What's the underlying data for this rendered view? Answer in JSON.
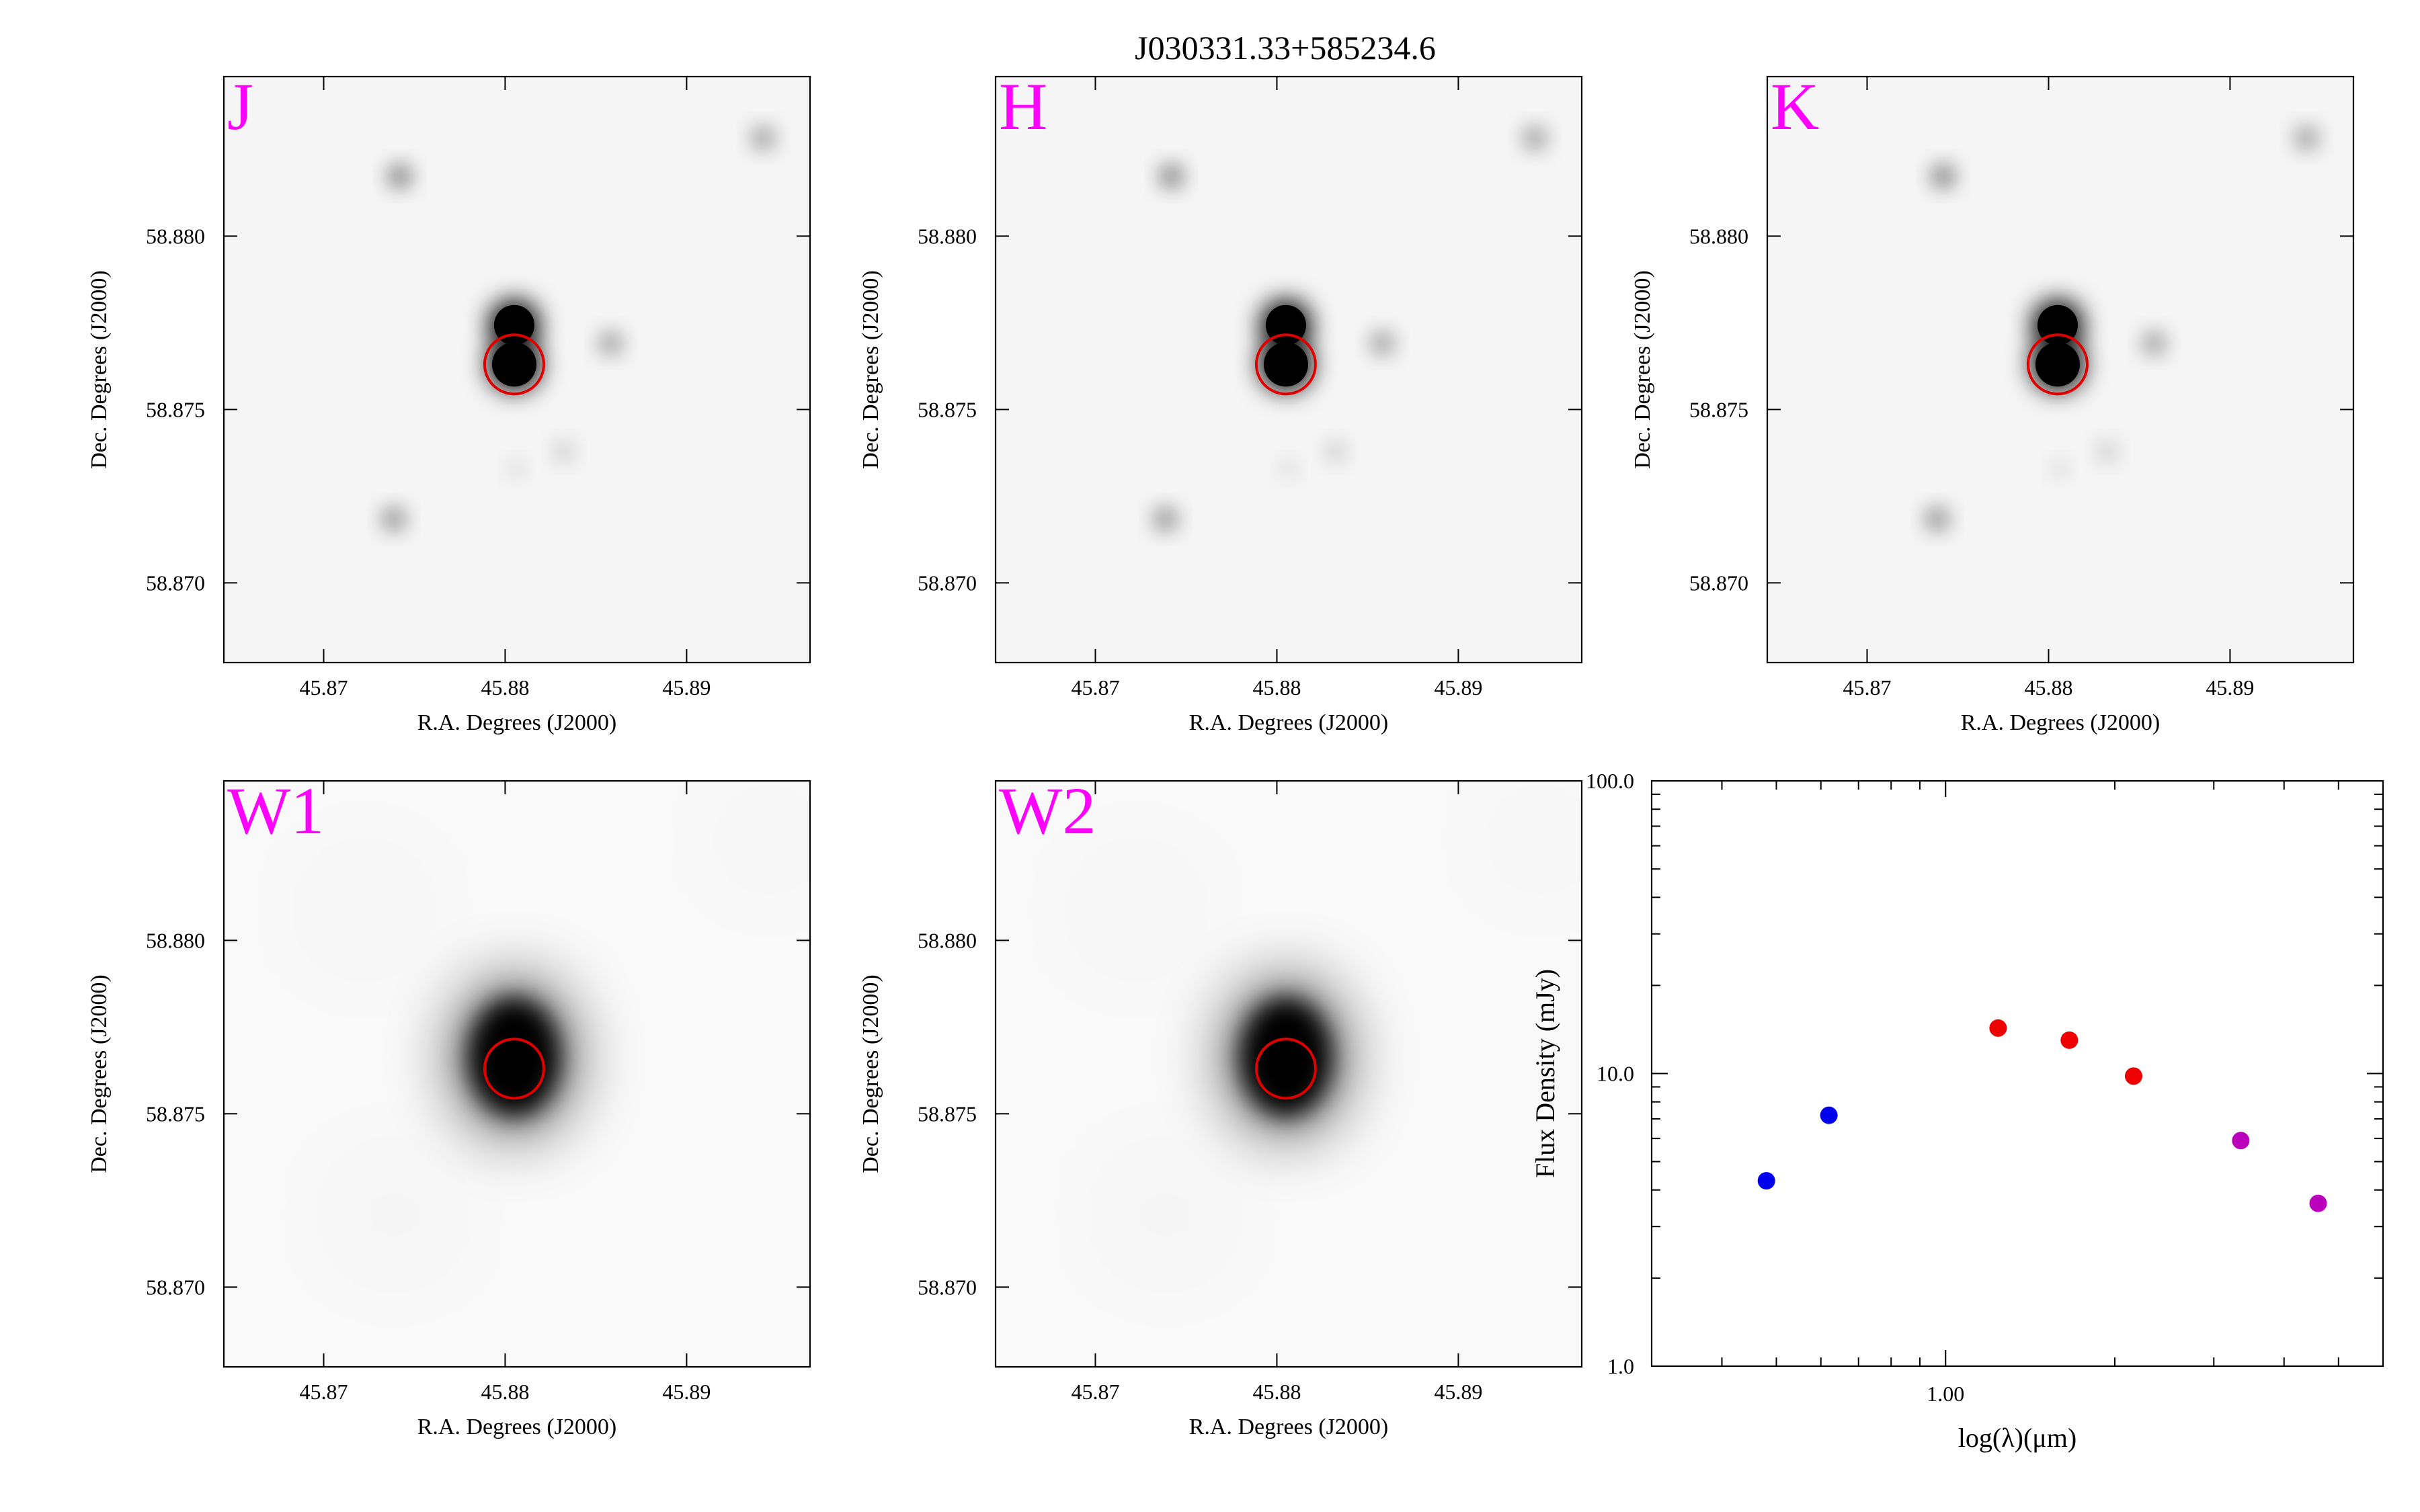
{
  "title": "J030331.33+585234.6",
  "colors": {
    "band_label": "#ff00ff",
    "aperture": "#e00000",
    "sed_optical": "#0000ee",
    "sed_nir": "#ee0000",
    "sed_wise": "#bb00bb"
  },
  "cutout_axes": {
    "xlabel": "R.A. Degrees (J2000)",
    "ylabel": "Dec. Degrees (J2000)",
    "xlim": [
      45.8645,
      45.8968
    ],
    "ylim": [
      58.8677,
      58.8846
    ],
    "x_ticks": [
      "45.87",
      "45.88",
      "45.89"
    ],
    "y_ticks": [
      "58.870",
      "58.875",
      "58.880"
    ]
  },
  "target": {
    "ra": 45.8805,
    "dec": 58.8763
  },
  "panels": [
    {
      "band": "J",
      "kind": "nir"
    },
    {
      "band": "H",
      "kind": "nir"
    },
    {
      "band": "K",
      "kind": "nir"
    },
    {
      "band": "W1",
      "kind": "wise"
    },
    {
      "band": "W2",
      "kind": "wise"
    }
  ],
  "chart_data": {
    "type": "scatter",
    "title": "",
    "xlabel": "log(λ)(μm)",
    "ylabel": "Flux Density (mJy)",
    "xscale": "log",
    "yscale": "log",
    "xlim": [
      0.3,
      6.0
    ],
    "ylim": [
      1.0,
      100.0
    ],
    "x_tick_labels": [
      "1.00"
    ],
    "y_tick_labels": [
      "1.0",
      "10.0",
      "100.0"
    ],
    "series": [
      {
        "group": "optical",
        "color": "#0000ee",
        "points": [
          [
            0.48,
            4.3
          ],
          [
            0.62,
            7.2
          ]
        ]
      },
      {
        "group": "near-infrared",
        "color": "#ee0000",
        "points": [
          [
            1.24,
            14.3
          ],
          [
            1.66,
            13.0
          ],
          [
            2.16,
            9.8
          ]
        ]
      },
      {
        "group": "mid-infrared",
        "color": "#bb00bb",
        "points": [
          [
            3.35,
            5.9
          ],
          [
            4.6,
            3.6
          ]
        ]
      }
    ]
  }
}
